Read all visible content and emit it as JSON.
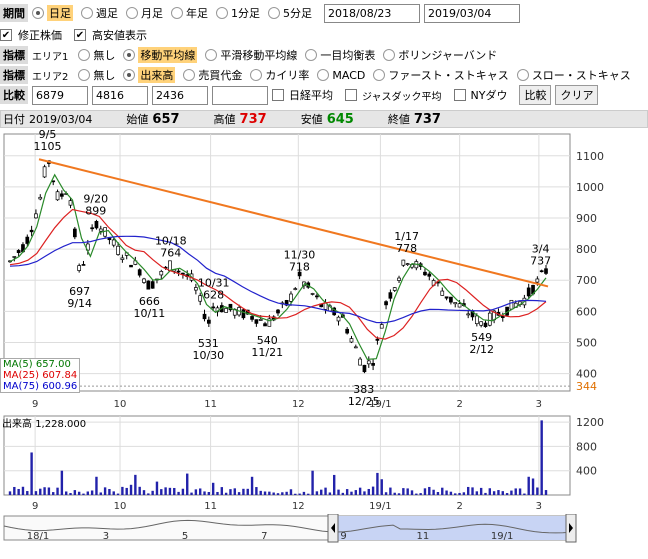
{
  "period": {
    "label": "期間",
    "options": [
      "日足",
      "週足",
      "月足",
      "年足",
      "1分足",
      "5分足"
    ],
    "selected": 0,
    "from": "2018/08/23",
    "to": "2019/03/04"
  },
  "options": {
    "adjusted": "修正株価",
    "highlow": "高安値表示"
  },
  "indicator1": {
    "label": "指標",
    "area": "エリア1",
    "options": [
      "無し",
      "移動平均線",
      "平滑移動平均線",
      "一目均衡表",
      "ボリンジャーバンド"
    ],
    "selected": 1
  },
  "indicator2": {
    "label": "指標",
    "area": "エリア2",
    "options": [
      "無し",
      "出来高",
      "売買代金",
      "カイリ率",
      "MACD",
      "ファースト・ストキャス",
      "スロー・ストキャス"
    ],
    "selected": 1
  },
  "compare": {
    "label": "比較",
    "codes": [
      "6879",
      "4816",
      "2436",
      ""
    ],
    "checks": [
      "日経平均",
      "ジャスダック平均",
      "NYダウ"
    ],
    "compare_button": "比較",
    "clear_button": "クリア"
  },
  "quote": {
    "date_label": "日付",
    "date": "2019/03/04",
    "open_label": "始値",
    "open": "657",
    "high_label": "高値",
    "high": "737",
    "low_label": "安値",
    "low": "645",
    "close_label": "終値",
    "close": "737"
  },
  "ma_legend": {
    "ma5": "MA(5)",
    "ma5_val": "657.00",
    "ma25": "MA(25)",
    "ma25_val": "607.84",
    "ma75": "MA(75)",
    "ma75_val": "600.96"
  },
  "volume": {
    "label": "出来高",
    "value": "1,228.000"
  },
  "chart_data": {
    "type": "candlestick",
    "ylim": [
      344,
      1170
    ],
    "yticks": [
      400,
      500,
      600,
      700,
      800,
      900,
      1000,
      1100
    ],
    "current_price_label": "344",
    "xticks": [
      "9",
      "10",
      "11",
      "12",
      "19/1",
      "2",
      "3"
    ],
    "annotations": [
      {
        "text": "9/5",
        "x": 0.07,
        "y": 1105,
        "val": "1105",
        "pos": "above"
      },
      {
        "text": "9/20",
        "x": 0.16,
        "y": 899,
        "val": "899",
        "pos": "above"
      },
      {
        "text": "697",
        "x": 0.13,
        "y": 697,
        "val": "9/14",
        "pos": "below"
      },
      {
        "text": "10/18",
        "x": 0.3,
        "y": 764,
        "val": "764",
        "pos": "above"
      },
      {
        "text": "666",
        "x": 0.26,
        "y": 666,
        "val": "10/11",
        "pos": "below"
      },
      {
        "text": "10/31",
        "x": 0.38,
        "y": 628,
        "val": "628",
        "pos": "above"
      },
      {
        "text": "531",
        "x": 0.37,
        "y": 531,
        "val": "10/30",
        "pos": "below"
      },
      {
        "text": "540",
        "x": 0.48,
        "y": 540,
        "val": "11/21",
        "pos": "below"
      },
      {
        "text": "11/30",
        "x": 0.54,
        "y": 718,
        "val": "718",
        "pos": "above"
      },
      {
        "text": "383",
        "x": 0.66,
        "y": 383,
        "val": "12/25",
        "pos": "below"
      },
      {
        "text": "1/17",
        "x": 0.74,
        "y": 778,
        "val": "778",
        "pos": "above"
      },
      {
        "text": "549",
        "x": 0.88,
        "y": 549,
        "val": "2/12",
        "pos": "below"
      },
      {
        "text": "3/4",
        "x": 0.99,
        "y": 737,
        "val": "737",
        "pos": "above"
      }
    ],
    "volume_yticks": [
      400,
      800,
      1200
    ],
    "volume_ylim": [
      0,
      1300
    ]
  },
  "nav": {
    "xticks": [
      "18/1",
      "3",
      "5",
      "7",
      "9",
      "11",
      "19/1"
    ]
  }
}
